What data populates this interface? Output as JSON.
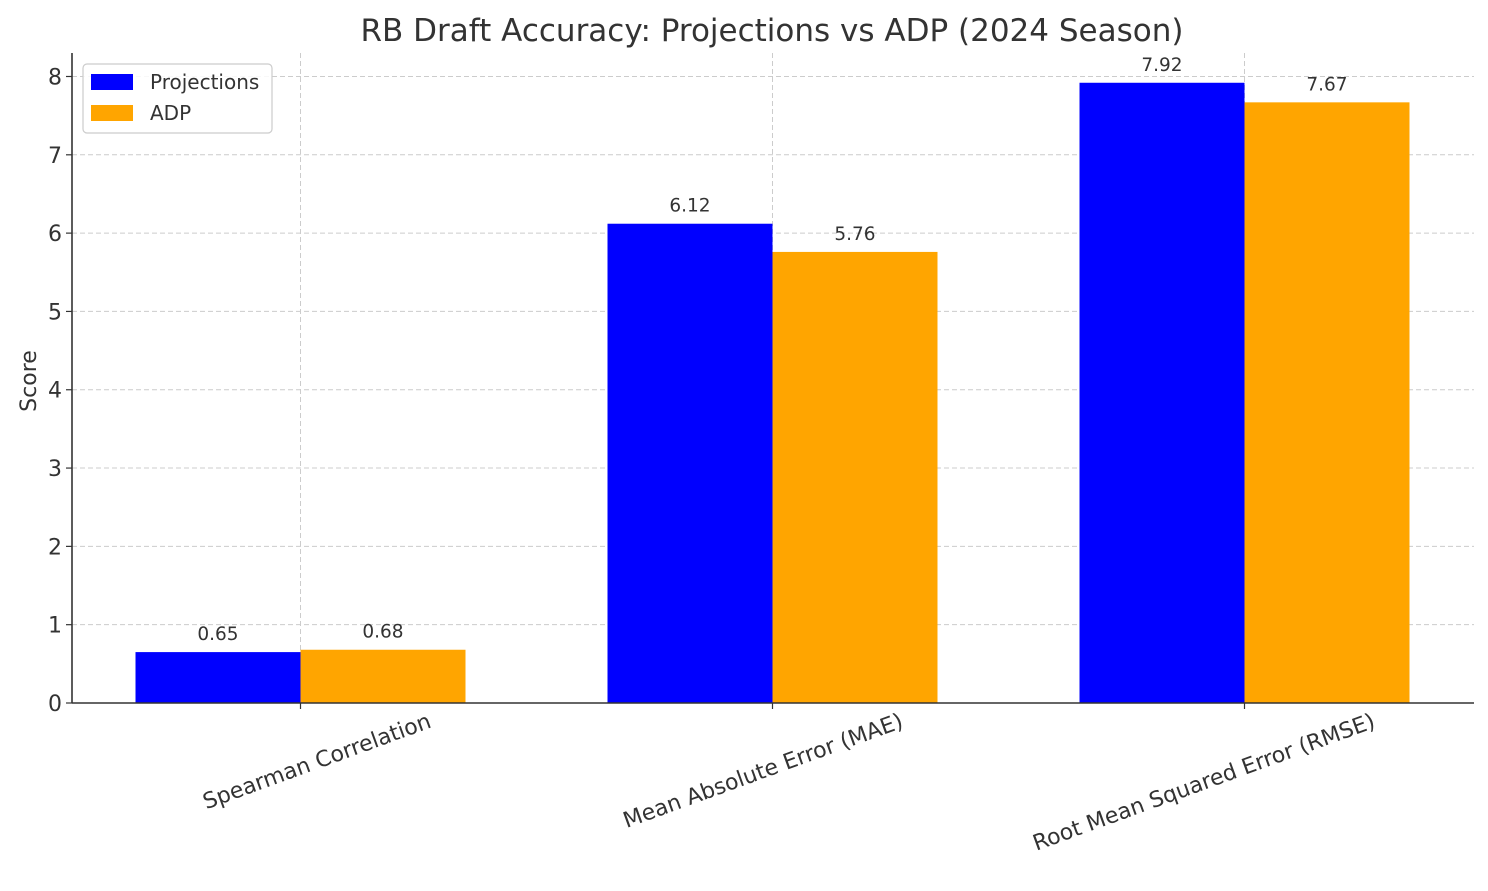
{
  "chart_data": {
    "type": "bar",
    "title": "RB Draft Accuracy: Projections vs ADP (2024 Season)",
    "xlabel": "",
    "ylabel": "Score",
    "categories": [
      "Spearman Correlation",
      "Mean Absolute Error (MAE)",
      "Root Mean Squared Error (RMSE)"
    ],
    "series": [
      {
        "name": "Projections",
        "color": "#0000ff",
        "values": [
          0.65,
          6.12,
          7.92
        ],
        "labels": [
          "0.65",
          "6.12",
          "7.92"
        ]
      },
      {
        "name": "ADP",
        "color": "#ffa500",
        "values": [
          0.68,
          5.76,
          7.67
        ],
        "labels": [
          "0.68",
          "5.76",
          "7.67"
        ]
      }
    ],
    "ylim": [
      0,
      8.3
    ],
    "yticks": [
      0,
      1,
      2,
      3,
      4,
      5,
      6,
      7,
      8
    ],
    "ytick_labels": [
      "0",
      "1",
      "2",
      "3",
      "4",
      "5",
      "6",
      "7",
      "8"
    ],
    "grid": true,
    "legend_position": "top-left",
    "xtick_rotation": -20
  }
}
